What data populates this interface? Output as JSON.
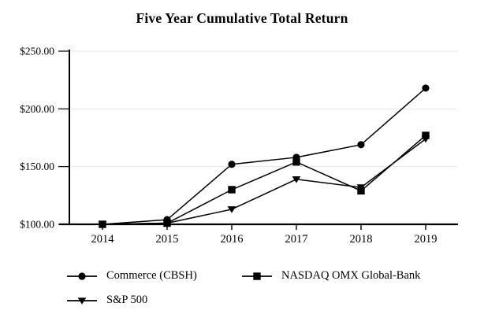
{
  "page": {
    "background": "#ffffff"
  },
  "chart_data": {
    "type": "line",
    "title": "Five Year Cumulative Total Return",
    "categories": [
      "2014",
      "2015",
      "2016",
      "2017",
      "2018",
      "2019"
    ],
    "series": [
      {
        "name": "Commerce (CBSH)",
        "marker": "circle",
        "color": "#000000",
        "values": [
          100,
          104,
          152,
          158,
          169,
          218
        ]
      },
      {
        "name": "NASDAQ OMX Global-Bank",
        "marker": "square",
        "color": "#000000",
        "values": [
          100,
          101,
          130,
          154,
          129,
          177
        ]
      },
      {
        "name": "S&P 500",
        "marker": "triangle-down",
        "color": "#000000",
        "values": [
          100,
          101,
          113,
          139,
          132,
          174
        ]
      }
    ],
    "xlabel": "",
    "ylabel": "",
    "ylim": [
      100,
      250
    ],
    "y_ticks": [
      {
        "value": 100,
        "label": "$100.00"
      },
      {
        "value": 150,
        "label": "$150.00"
      },
      {
        "value": 200,
        "label": "$200.00"
      },
      {
        "value": 250,
        "label": "$250.00"
      }
    ],
    "grid": "horizontal",
    "legend_position": "bottom-left",
    "colors": {
      "line": "#000000",
      "grid": "#e8e8e8",
      "text": "#000000",
      "background": "#ffffff"
    }
  }
}
